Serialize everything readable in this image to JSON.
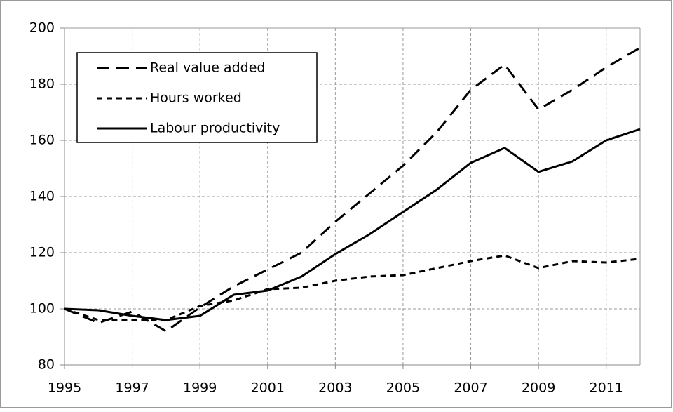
{
  "chart_data": {
    "type": "line",
    "x": [
      1995,
      1996,
      1997,
      1998,
      1999,
      2000,
      2001,
      2002,
      2003,
      2004,
      2005,
      2006,
      2007,
      2008,
      2009,
      2010,
      2011,
      2012
    ],
    "series": [
      {
        "name": "Real value added",
        "color": "#000000",
        "dash": "18,10",
        "values": [
          100,
          95,
          99,
          92,
          100.5,
          108,
          114,
          120,
          131,
          141,
          151,
          163,
          178,
          187,
          171,
          178,
          186,
          193
        ]
      },
      {
        "name": "Hours worked",
        "color": "#000000",
        "dash": "8,6",
        "values": [
          100,
          96,
          96,
          96,
          101,
          103,
          107,
          107.5,
          110,
          111.5,
          112,
          114.5,
          117,
          119,
          114.5,
          117,
          116.5,
          117.8
        ]
      },
      {
        "name": "Labour productivity",
        "color": "#000000",
        "dash": "none",
        "values": [
          100,
          99.5,
          97.5,
          96,
          97.5,
          105,
          106.5,
          111.5,
          119.5,
          126.5,
          134.5,
          142.5,
          152,
          157.3,
          148.8,
          152.5,
          160,
          164
        ]
      }
    ],
    "xlim": [
      1995,
      2012
    ],
    "xticks": [
      1995,
      1997,
      1999,
      2001,
      2003,
      2005,
      2007,
      2009,
      2011
    ],
    "ylim": [
      80,
      200
    ],
    "yticks": [
      80,
      100,
      120,
      140,
      160,
      180,
      200
    ],
    "grid": true,
    "legend": "top-left"
  }
}
